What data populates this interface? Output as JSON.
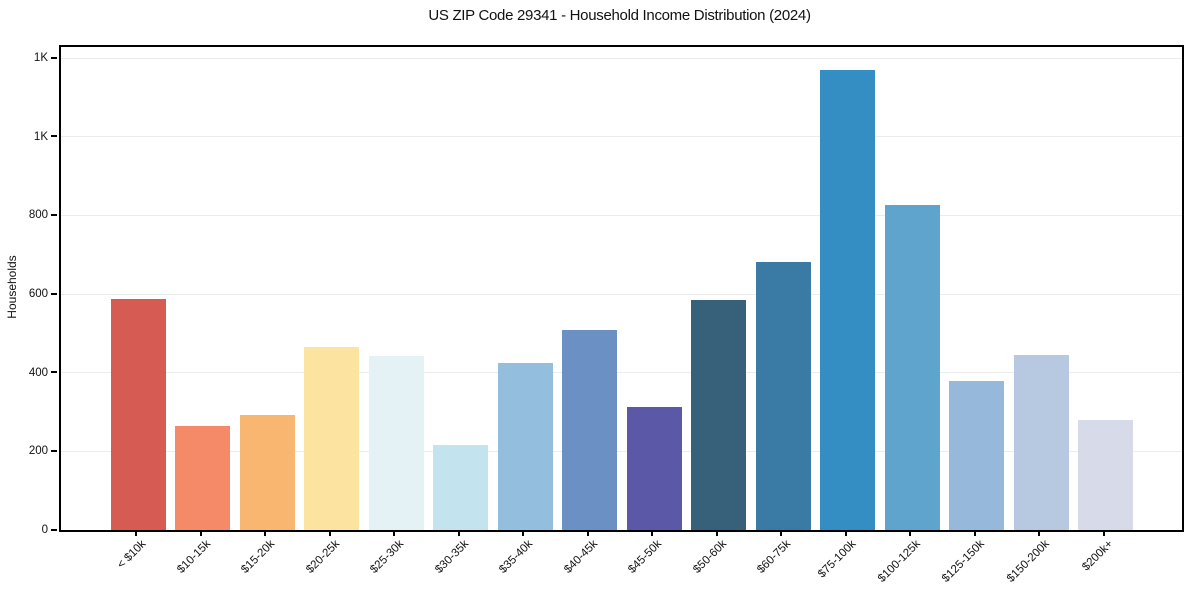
{
  "chart_data": {
    "type": "bar",
    "title": "US ZIP Code 29341 - Household Income Distribution (2024)",
    "xlabel": "",
    "ylabel": "Households",
    "categories": [
      "< $10k",
      "$10-15k",
      "$15-20k",
      "$20-25k",
      "$25-30k",
      "$30-35k",
      "$35-40k",
      "$40-45k",
      "$45-50k",
      "$50-60k",
      "$60-75k",
      "$75-100k",
      "$100-125k",
      "$125-150k",
      "$150-200k",
      "$200k+"
    ],
    "values": [
      587,
      264,
      292,
      465,
      442,
      216,
      424,
      508,
      312,
      584,
      681,
      1170,
      826,
      379,
      444,
      279
    ],
    "bar_colors": [
      "#d65b52",
      "#f48a68",
      "#f9b671",
      "#fce3a0",
      "#e4f2f5",
      "#c3e4ee",
      "#93bedd",
      "#6b90c3",
      "#5b58a8",
      "#37607a",
      "#3a7ba5",
      "#348ec4",
      "#5fa4cc",
      "#96b9db",
      "#b7c9e1",
      "#d7dbe9"
    ],
    "ylim": [
      0,
      1228
    ],
    "yticks": {
      "values": [
        0,
        200,
        400,
        600,
        800,
        1000,
        1200
      ],
      "labels": [
        "0",
        "200",
        "400",
        "600",
        "800",
        "1K",
        "1K"
      ]
    },
    "grid": "horizontal",
    "grid_color": "#ececec",
    "axis_color": "#000000",
    "background_color": "#ffffff",
    "legend": "none"
  }
}
